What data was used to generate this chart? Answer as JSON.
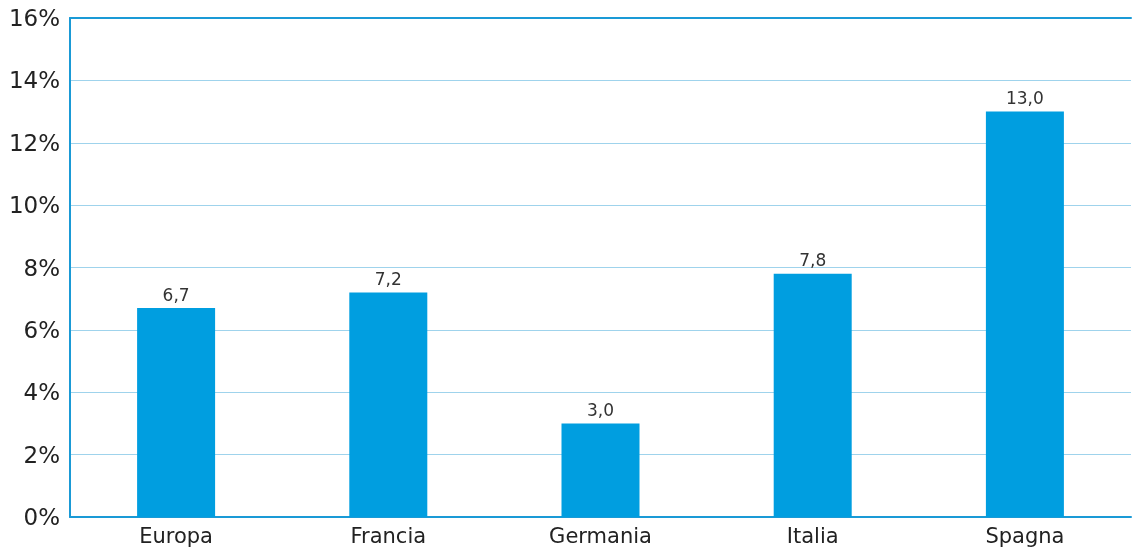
{
  "chart_data": {
    "type": "bar",
    "categories": [
      "Europa",
      "Francia",
      "Germania",
      "Italia",
      "Spagna"
    ],
    "values": [
      6.7,
      7.2,
      3.0,
      7.8,
      13.0
    ],
    "value_labels": [
      "6,7",
      "7,2",
      "3,0",
      "7,8",
      "13,0"
    ],
    "color": "#009ee0",
    "ylim": [
      0,
      16
    ],
    "yticks": [
      {
        "value": 0,
        "label": "0%"
      },
      {
        "value": 2,
        "label": "2%"
      },
      {
        "value": 4,
        "label": "4%"
      },
      {
        "value": 6,
        "label": "6%"
      },
      {
        "value": 8,
        "label": "8%"
      },
      {
        "value": 10,
        "label": "10%"
      },
      {
        "value": 12,
        "label": "12%"
      },
      {
        "value": 14,
        "label": "14%"
      },
      {
        "value": 16,
        "label": "16%"
      }
    ],
    "grid": "y"
  }
}
